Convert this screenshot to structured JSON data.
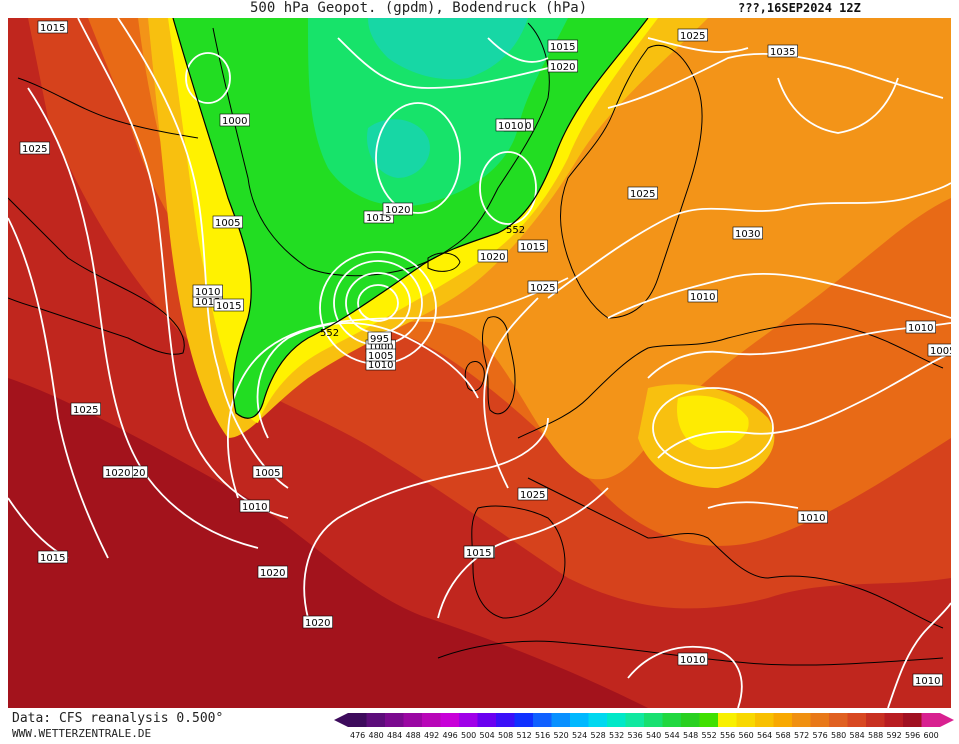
{
  "header": {
    "title": "500 hPa Geopot. (gpdm), Bodendruck (hPa)",
    "date": "???,16SEP2024 12Z"
  },
  "footer": {
    "data_source": "Data: CFS reanalysis 0.500°",
    "website": "WWW.WETTERZENTRALE.DE"
  },
  "colors": {
    "deep_red": "#a3131c",
    "red": "#c0261e",
    "red_orange": "#d6421c",
    "orange": "#e86a16",
    "light_orange": "#f39418",
    "yellow_orange": "#f8c00f",
    "yellow": "#fff200",
    "green": "#22dd22",
    "light_green": "#17e36a",
    "teal": "#17d7a5",
    "isobar": "#ffffff",
    "coastline": "#000000"
  },
  "isobar_labels": [
    "1015",
    "1025",
    "1015",
    "1020",
    "1015",
    "1035",
    "1000",
    "1010",
    "1005",
    "1015",
    "1020",
    "1025",
    "1010",
    "1015",
    "1030",
    "1020",
    "1015",
    "1025",
    "1010",
    "1010",
    "1025",
    "1005",
    "1005",
    "1000",
    "1010",
    "1010",
    "1025",
    "1020",
    "1010",
    "1015",
    "1020",
    "1015",
    "1005",
    "1015",
    "1020",
    "1025",
    "1010",
    "1010",
    "1020",
    "1010",
    "552",
    "552",
    "995"
  ],
  "legend": {
    "values": [
      "476",
      "480",
      "484",
      "488",
      "492",
      "496",
      "500",
      "504",
      "508",
      "512",
      "516",
      "520",
      "524",
      "528",
      "532",
      "536",
      "540",
      "544",
      "548",
      "552",
      "556",
      "560",
      "564",
      "568",
      "572",
      "576",
      "580",
      "584",
      "588",
      "592",
      "596",
      "600"
    ],
    "colors": [
      "#3d0b5c",
      "#5c0d7a",
      "#7a0a8f",
      "#9a07a3",
      "#b806b8",
      "#c800d8",
      "#a000e8",
      "#6a00f0",
      "#3a10f8",
      "#1030ff",
      "#1060ff",
      "#0890ff",
      "#00b8ff",
      "#00d8f0",
      "#00e8c8",
      "#10e8a0",
      "#18e070",
      "#20d840",
      "#28d020",
      "#40e000",
      "#f8f000",
      "#f8d800",
      "#f8c000",
      "#f8a800",
      "#f09010",
      "#e87818",
      "#e06020",
      "#d84820",
      "#c83020",
      "#b81c20",
      "#a01020",
      "#d82090"
    ]
  }
}
